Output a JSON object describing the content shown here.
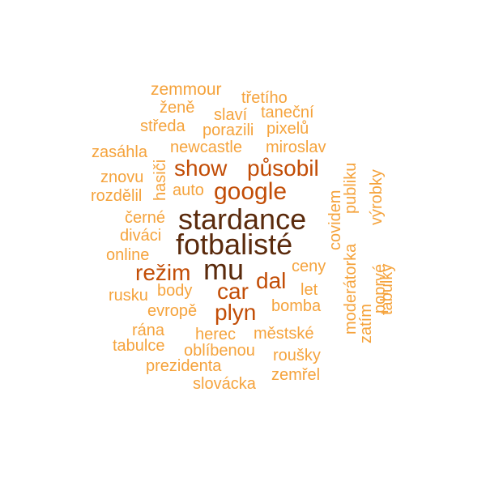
{
  "palette": {
    "darkest": "#5a2a0c",
    "dark": "#c24d06",
    "medium": "#ee8a2a",
    "light": "#f5a33c",
    "background": "#ffffff"
  },
  "words": {
    "zemmour": "zemmour",
    "tretiho": "třetího",
    "zene": "ženě",
    "slavi": "slaví",
    "tanecni": "taneční",
    "streda": "středa",
    "porazili": "porazili",
    "pixelu": "pixelů",
    "zasahla": "zasáhla",
    "newcastle": "newcastle",
    "miroslav": "miroslav",
    "show": "show",
    "pusobil": "působil",
    "znovu": "znovu",
    "hasici": "hasiči",
    "rozdelil": "rozdělil",
    "auto": "auto",
    "google": "google",
    "covidem": "covidem",
    "publiku": "publiku",
    "vyrobky": "výrobky",
    "cerne": "černé",
    "stardance": "stardance",
    "divaci": "diváci",
    "fotbaliste": "fotbalisté",
    "online": "online",
    "ceny": "ceny",
    "rezim": "režim",
    "mu": "mu",
    "dal": "dal",
    "car": "car",
    "moderatorka": "moderátorka",
    "poprve": "poprvé",
    "zatim": "zatím",
    "tabulky": "tabulky",
    "rusku": "rusku",
    "body": "body",
    "let": "let",
    "evrope": "evropě",
    "plyn": "plyn",
    "bomba": "bomba",
    "rana": "rána",
    "herec": "herec",
    "mestske": "městské",
    "tabulce": "tabulce",
    "oblibenou": "oblíbenou",
    "rousky": "roušky",
    "prezidenta": "prezidenta",
    "zemrel": "zemřel",
    "slovacka": "slovácka"
  }
}
